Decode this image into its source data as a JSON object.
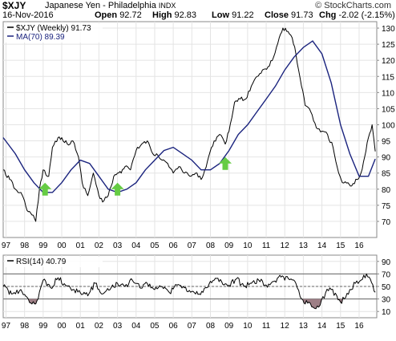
{
  "header": {
    "symbol": "$XJY",
    "name": "Japanese Yen - Philadelphia",
    "index": "INDX",
    "logo": "© StockCharts.com",
    "date": "16-Nov-2016",
    "open_label": "Open",
    "open": "92.72",
    "high_label": "High",
    "high": "92.83",
    "low_label": "Low",
    "low": "91.22",
    "close_label": "Close",
    "close": "91.73",
    "chg_label": "Chg",
    "chg": "-2.02 (-2.15%)",
    "chg_arrow": "▼"
  },
  "colors": {
    "price": "#000000",
    "ma": "#1a237e",
    "arrow": "#66cc44",
    "rsi_fill": "#9e7f86",
    "grid": "#e4e4e4",
    "down": "#cc0000"
  },
  "chart_data": [
    {
      "type": "line",
      "legend": [
        {
          "name": "$XJY (Weekly) 91.73",
          "color": "#000000"
        },
        {
          "name": "MA(70) 89.39",
          "color": "#1a237e"
        }
      ],
      "legend_placement": "top-left",
      "ylim": [
        65,
        132
      ],
      "y_ticks": [
        70,
        75,
        80,
        85,
        90,
        95,
        100,
        105,
        110,
        115,
        120,
        125,
        130
      ],
      "x_ticks": [
        "97",
        "98",
        "99",
        "00",
        "01",
        "02",
        "03",
        "04",
        "05",
        "06",
        "07",
        "08",
        "09",
        "10",
        "11",
        "12",
        "13",
        "14",
        "15",
        "16"
      ],
      "x_range": [
        1996.85,
        2016.95
      ],
      "grid": true,
      "series": [
        {
          "name": "$XJY (Weekly)",
          "x": [
            1996.85,
            1997.2,
            1997.5,
            1997.8,
            1998.2,
            1998.4,
            1998.6,
            1998.8,
            1999.0,
            1999.3,
            1999.5,
            1999.8,
            2000.0,
            2000.3,
            2000.6,
            2000.9,
            2001.1,
            2001.4,
            2001.7,
            2002.0,
            2002.2,
            2002.5,
            2002.8,
            2003.0,
            2003.2,
            2003.4,
            2003.7,
            2004.0,
            2004.3,
            2004.6,
            2004.9,
            2005.1,
            2005.4,
            2005.7,
            2006.0,
            2006.3,
            2006.6,
            2006.9,
            2007.2,
            2007.5,
            2007.7,
            2007.9,
            2008.2,
            2008.5,
            2008.8,
            2009.0,
            2009.3,
            2009.6,
            2009.9,
            2010.2,
            2010.5,
            2010.8,
            2011.1,
            2011.4,
            2011.7,
            2011.9,
            2012.1,
            2012.4,
            2012.6,
            2012.9,
            2013.1,
            2013.4,
            2013.7,
            2014.0,
            2014.3,
            2014.6,
            2014.9,
            2015.1,
            2015.4,
            2015.6,
            2015.9,
            2016.1,
            2016.3,
            2016.5,
            2016.7,
            2016.87
          ],
          "values": [
            86,
            83,
            80,
            79,
            73,
            72,
            70,
            80,
            86,
            84,
            93,
            96,
            96,
            94,
            95,
            90,
            82,
            78,
            85,
            78,
            76,
            78,
            84,
            85,
            85,
            87,
            86,
            92,
            94,
            95,
            91,
            91,
            89,
            88,
            85,
            87,
            85,
            84,
            85,
            83,
            86,
            90,
            95,
            97,
            94,
            98,
            107,
            108,
            108,
            112,
            115,
            117,
            118,
            121,
            127,
            130,
            129,
            127,
            122,
            112,
            106,
            104,
            99,
            98,
            97,
            93,
            85,
            82,
            82,
            81,
            83,
            85,
            90,
            96,
            100,
            91.73
          ]
        },
        {
          "name": "MA(70)",
          "x": [
            1996.85,
            1997.5,
            1998.0,
            1998.5,
            1999.0,
            1999.5,
            2000.0,
            2000.5,
            2001.0,
            2001.5,
            2002.0,
            2002.5,
            2003.0,
            2003.5,
            2004.0,
            2004.5,
            2005.0,
            2005.5,
            2006.0,
            2006.5,
            2007.0,
            2007.5,
            2008.0,
            2008.5,
            2009.0,
            2009.5,
            2010.0,
            2010.5,
            2011.0,
            2011.5,
            2012.0,
            2012.5,
            2013.0,
            2013.5,
            2014.0,
            2014.5,
            2015.0,
            2015.5,
            2016.0,
            2016.5,
            2016.87
          ],
          "values": [
            96,
            91,
            86,
            82,
            79,
            79,
            82,
            86,
            89,
            88,
            84,
            80,
            79,
            80,
            82,
            86,
            89,
            92,
            93,
            91,
            89,
            86,
            86,
            88,
            92,
            97,
            100,
            104,
            108,
            112,
            117,
            121,
            124,
            126,
            122,
            113,
            100,
            91,
            84,
            84,
            89.39
          ]
        }
      ],
      "annotations": [
        {
          "type": "up-arrow",
          "x": 1999.1,
          "y": 80
        },
        {
          "type": "up-arrow",
          "x": 2003.0,
          "y": 80
        },
        {
          "type": "up-arrow",
          "x": 2008.8,
          "y": 88
        }
      ]
    },
    {
      "type": "line",
      "legend": [
        {
          "name": "RSI(14) 40.79",
          "color": "#000000"
        }
      ],
      "ylim": [
        0,
        100
      ],
      "y_ticks": [
        10,
        30,
        50,
        70,
        90
      ],
      "reference_lines": [
        30,
        50,
        70
      ],
      "x_ticks": [
        "97",
        "98",
        "99",
        "00",
        "01",
        "02",
        "03",
        "04",
        "05",
        "06",
        "07",
        "08",
        "09",
        "10",
        "11",
        "12",
        "13",
        "14",
        "15",
        "16"
      ],
      "x_range": [
        1996.85,
        2016.95
      ],
      "series": [
        {
          "name": "RSI(14)",
          "x": [
            1996.85,
            1997.3,
            1997.8,
            1998.2,
            1998.6,
            1999.0,
            1999.4,
            1999.8,
            2000.2,
            2000.6,
            2001.0,
            2001.4,
            2001.8,
            2002.2,
            2002.6,
            2003.0,
            2003.4,
            2003.8,
            2004.2,
            2004.6,
            2005.0,
            2005.4,
            2005.8,
            2006.2,
            2006.6,
            2007.0,
            2007.4,
            2007.8,
            2008.2,
            2008.6,
            2009.0,
            2009.4,
            2009.8,
            2010.2,
            2010.6,
            2011.0,
            2011.4,
            2011.8,
            2012.2,
            2012.6,
            2012.9,
            2013.1,
            2013.3,
            2013.6,
            2013.9,
            2014.2,
            2014.5,
            2014.8,
            2015.0,
            2015.2,
            2015.5,
            2015.8,
            2016.1,
            2016.4,
            2016.6,
            2016.87
          ],
          "values": [
            50,
            38,
            45,
            30,
            22,
            60,
            48,
            64,
            52,
            45,
            40,
            35,
            55,
            38,
            45,
            55,
            50,
            60,
            48,
            55,
            45,
            50,
            40,
            52,
            48,
            42,
            38,
            48,
            60,
            58,
            52,
            62,
            50,
            55,
            60,
            52,
            58,
            65,
            62,
            55,
            30,
            22,
            25,
            15,
            20,
            40,
            45,
            35,
            25,
            30,
            45,
            55,
            60,
            70,
            62,
            40.79
          ]
        }
      ]
    }
  ]
}
